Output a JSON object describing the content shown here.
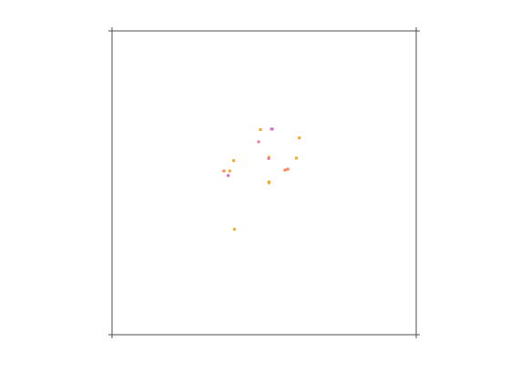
{
  "chart_data": {
    "type": "scatter",
    "title": "",
    "xlabel": "",
    "ylabel": "",
    "grid": false,
    "legend": "none",
    "xlim": [
      0,
      100
    ],
    "ylim": [
      0,
      100
    ],
    "series": [
      {
        "color": "#f5a623",
        "points": [
          [
            48.8,
            67.5
          ],
          [
            61.6,
            64.8
          ],
          [
            40.0,
            57.3
          ],
          [
            51.6,
            58.4
          ],
          [
            60.6,
            58.1
          ],
          [
            38.7,
            53.9
          ],
          [
            51.6,
            50.3
          ],
          [
            51.6,
            50.0
          ],
          [
            40.2,
            34.7
          ]
        ]
      },
      {
        "color": "#ff7f50",
        "points": [
          [
            36.8,
            53.9
          ],
          [
            56.9,
            54.2
          ],
          [
            57.8,
            54.5
          ]
        ]
      },
      {
        "color": "#e87aa0",
        "points": [
          [
            52.4,
            67.7
          ],
          [
            48.2,
            63.5
          ],
          [
            51.5,
            58.0
          ]
        ]
      },
      {
        "color": "#d966c9",
        "points": [
          [
            52.7,
            67.7
          ],
          [
            38.2,
            52.4
          ]
        ]
      }
    ]
  }
}
